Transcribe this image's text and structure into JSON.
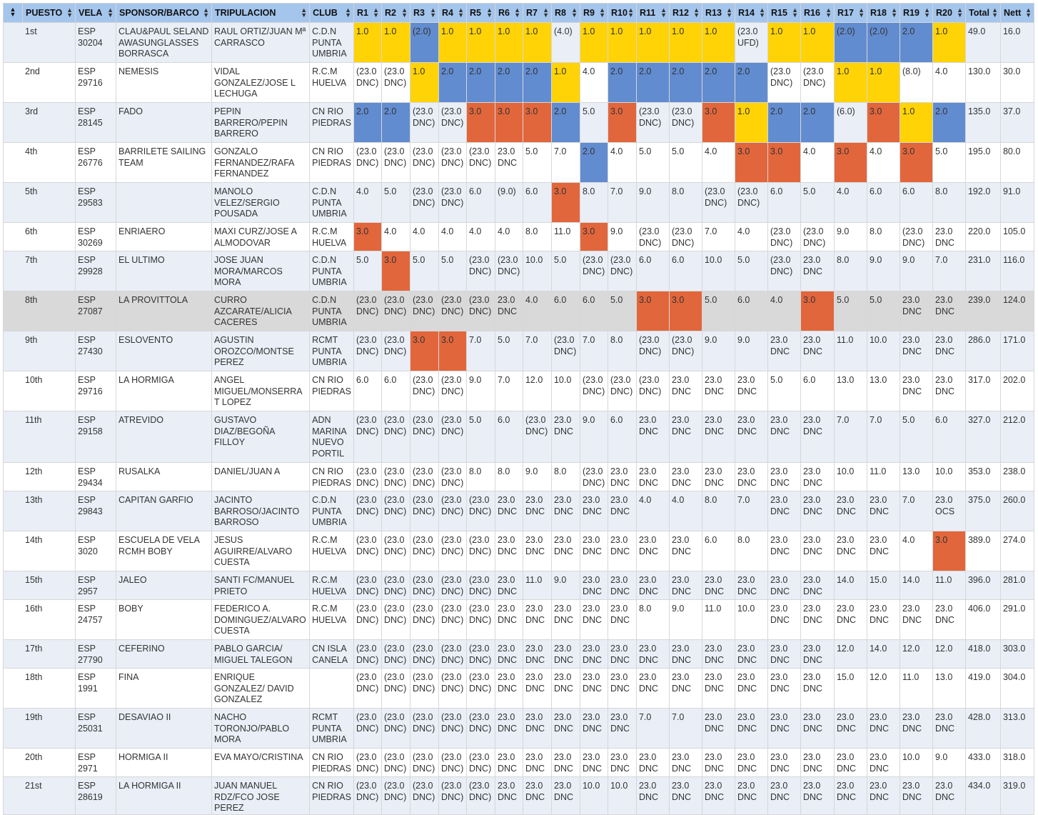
{
  "colors": {
    "y": "#ffd305",
    "b": "#628cd0",
    "o": "#e2663c",
    "header": "#a4c5ec",
    "stripe": "#e9eef7",
    "highlight": "#d9d9d9"
  },
  "headers": [
    "PUESTO",
    "VELA",
    "SPONSOR/BARCO",
    "TRIPULACION",
    "CLUB",
    "R1",
    "R2",
    "R3",
    "R4",
    "R5",
    "R6",
    "R7",
    "R8",
    "R9",
    "R10",
    "R11",
    "R12",
    "R13",
    "R14",
    "R15",
    "R16",
    "R17",
    "R18",
    "R19",
    "R20",
    "Total",
    "Nett"
  ],
  "rows": [
    {
      "pos": "1st",
      "vela": "ESP 30204",
      "barco": "CLAU&PAUL SELAND AWASUNGLASSES BORRASCA",
      "trip": "RAUL ORTIZ/JUAN Mª CARRASCO",
      "club": "C.D.N PUNTA UMBRIA",
      "r": [
        "1.0",
        "1.0",
        "(2.0)",
        "1.0",
        "1.0",
        "1.0",
        "1.0",
        "(4.0)",
        "1.0",
        "1.0",
        "1.0",
        "1.0",
        "1.0",
        "(23.0 UFD)",
        "1.0",
        "1.0",
        "(2.0)",
        "(2.0)",
        "2.0",
        "1.0"
      ],
      "c": [
        "y",
        "y",
        "b",
        "y",
        "y",
        "y",
        "y",
        "",
        "y",
        "y",
        "y",
        "y",
        "y",
        "",
        "y",
        "y",
        "b",
        "b",
        "b",
        "y"
      ],
      "total": "49.0",
      "nett": "16.0"
    },
    {
      "pos": "2nd",
      "vela": "ESP 29716",
      "barco": "NEMESIS",
      "trip": "VIDAL GONZALEZ/JOSE L LECHUGA",
      "club": "R.C.M HUELVA",
      "r": [
        "(23.0 DNC)",
        "(23.0 DNC)",
        "1.0",
        "2.0",
        "2.0",
        "2.0",
        "2.0",
        "1.0",
        "4.0",
        "2.0",
        "2.0",
        "2.0",
        "2.0",
        "2.0",
        "(23.0 DNC)",
        "(23.0 DNC)",
        "1.0",
        "1.0",
        "(8.0)",
        "4.0"
      ],
      "c": [
        "",
        "",
        "y",
        "b",
        "b",
        "b",
        "b",
        "y",
        "",
        "b",
        "b",
        "b",
        "b",
        "b",
        "",
        "",
        "y",
        "y",
        "",
        ""
      ],
      "total": "130.0",
      "nett": "30.0"
    },
    {
      "pos": "3rd",
      "vela": "ESP 28145",
      "barco": "FADO",
      "trip": "PEPIN BARRERO/PEPIN BARRERO",
      "club": "CN RIO PIEDRAS",
      "r": [
        "2.0",
        "2.0",
        "(23.0 DNC)",
        "(23.0 DNC)",
        "3.0",
        "3.0",
        "3.0",
        "2.0",
        "5.0",
        "3.0",
        "(23.0 DNC)",
        "(23.0 DNC)",
        "3.0",
        "1.0",
        "2.0",
        "2.0",
        "(6.0)",
        "3.0",
        "1.0",
        "2.0"
      ],
      "c": [
        "b",
        "b",
        "",
        "",
        "o",
        "o",
        "o",
        "b",
        "",
        "o",
        "",
        "",
        "o",
        "y",
        "b",
        "b",
        "",
        "o",
        "y",
        "b"
      ],
      "total": "135.0",
      "nett": "37.0"
    },
    {
      "pos": "4th",
      "vela": "ESP 26776",
      "barco": "BARRILETE SAILING TEAM",
      "trip": "GONZALO FERNANDEZ/RAFA FERNANDEZ",
      "club": "CN RIO PIEDRAS",
      "r": [
        "(23.0 DNC)",
        "(23.0 DNC)",
        "(23.0 DNC)",
        "(23.0 DNC)",
        "(23.0 DNC)",
        "23.0 DNC",
        "5.0",
        "7.0",
        "2.0",
        "4.0",
        "5.0",
        "5.0",
        "4.0",
        "3.0",
        "3.0",
        "4.0",
        "3.0",
        "4.0",
        "3.0",
        "5.0"
      ],
      "c": [
        "",
        "",
        "",
        "",
        "",
        "",
        "",
        "",
        "b",
        "",
        "",
        "",
        "",
        "o",
        "o",
        "",
        "o",
        "",
        "o",
        ""
      ],
      "total": "195.0",
      "nett": "80.0"
    },
    {
      "pos": "5th",
      "vela": "ESP 29583",
      "barco": "",
      "trip": "MANOLO VELEZ/SERGIO POUSADA",
      "club": "C.D.N PUNTA UMBRIA",
      "r": [
        "4.0",
        "5.0",
        "(23.0 DNC)",
        "(23.0 DNC)",
        "6.0",
        "(9.0)",
        "6.0",
        "3.0",
        "8.0",
        "7.0",
        "9.0",
        "8.0",
        "(23.0 DNC)",
        "(23.0 DNC)",
        "6.0",
        "5.0",
        "4.0",
        "6.0",
        "6.0",
        "8.0"
      ],
      "c": [
        "",
        "",
        "",
        "",
        "",
        "",
        "",
        "o",
        "",
        "",
        "",
        "",
        "",
        "",
        "",
        "",
        "",
        "",
        "",
        ""
      ],
      "total": "192.0",
      "nett": "91.0"
    },
    {
      "pos": "6th",
      "vela": "ESP 30269",
      "barco": "ENRIAERO",
      "trip": "MAXI CURZ/JOSE A ALMODOVAR",
      "club": "R.C.M HUELVA",
      "r": [
        "3.0",
        "4.0",
        "4.0",
        "4.0",
        "4.0",
        "4.0",
        "8.0",
        "11.0",
        "3.0",
        "9.0",
        "(23.0 DNC)",
        "(23.0 DNC)",
        "7.0",
        "4.0",
        "(23.0 DNC)",
        "(23.0 DNC)",
        "9.0",
        "8.0",
        "(23.0 DNC)",
        "23.0 DNC"
      ],
      "c": [
        "o",
        "",
        "",
        "",
        "",
        "",
        "",
        "",
        "o",
        "",
        "",
        "",
        "",
        "",
        "",
        "",
        "",
        "",
        "",
        ""
      ],
      "total": "220.0",
      "nett": "105.0"
    },
    {
      "pos": "7th",
      "vela": "ESP 29928",
      "barco": "EL ULTIMO",
      "trip": "JOSE JUAN MORA/MARCOS MORA",
      "club": "C.D.N PUNTA UMBRIA",
      "r": [
        "5.0",
        "3.0",
        "5.0",
        "5.0",
        "(23.0 DNC)",
        "(23.0 DNC)",
        "10.0",
        "5.0",
        "(23.0 DNC)",
        "(23.0 DNC)",
        "6.0",
        "6.0",
        "10.0",
        "5.0",
        "(23.0 DNC)",
        "23.0 DNC",
        "8.0",
        "9.0",
        "9.0",
        "7.0"
      ],
      "c": [
        "",
        "o",
        "",
        "",
        "",
        "",
        "",
        "",
        "",
        "",
        "",
        "",
        "",
        "",
        "",
        "",
        "",
        "",
        "",
        ""
      ],
      "total": "231.0",
      "nett": "116.0"
    },
    {
      "pos": "8th",
      "vela": "ESP 27087",
      "barco": "LA PROVITTOLA",
      "trip": "CURRO AZCARATE/ALICIA CACERES",
      "club": "C.D.N PUNTA UMBRIA",
      "r": [
        "(23.0 DNC)",
        "(23.0 DNC)",
        "(23.0 DNC)",
        "(23.0 DNC)",
        "(23.0 DNC)",
        "23.0 DNC",
        "4.0",
        "6.0",
        "6.0",
        "5.0",
        "3.0",
        "3.0",
        "5.0",
        "6.0",
        "4.0",
        "3.0",
        "5.0",
        "5.0",
        "23.0 DNC",
        "23.0 DNC"
      ],
      "c": [
        "",
        "",
        "",
        "",
        "",
        "",
        "",
        "",
        "",
        "",
        "o",
        "o",
        "",
        "",
        "",
        "o",
        "",
        "",
        "",
        ""
      ],
      "total": "239.0",
      "nett": "124.0"
    },
    {
      "pos": "9th",
      "vela": "ESP 27430",
      "barco": "ESLOVENTO",
      "trip": "AGUSTIN OROZCO/MONTSE PEREZ",
      "club": "RCMT PUNTA UMBRIA",
      "r": [
        "(23.0 DNC)",
        "(23.0 DNC)",
        "3.0",
        "3.0",
        "7.0",
        "5.0",
        "7.0",
        "(23.0 DNC)",
        "7.0",
        "8.0",
        "(23.0 DNC)",
        "(23.0 DNC)",
        "9.0",
        "9.0",
        "23.0 DNC",
        "23.0 DNC",
        "11.0",
        "10.0",
        "23.0 DNC",
        "23.0 DNC"
      ],
      "c": [
        "",
        "",
        "o",
        "o",
        "",
        "",
        "",
        "",
        "",
        "",
        "",
        "",
        "",
        "",
        "",
        "",
        "",
        "",
        "",
        ""
      ],
      "total": "286.0",
      "nett": "171.0"
    },
    {
      "pos": "10th",
      "vela": "ESP 29716",
      "barco": "LA HORMIGA",
      "trip": "ANGEL MIGUEL/MONSERRAT LOPEZ",
      "club": "CN RIO PIEDRAS",
      "r": [
        "6.0",
        "6.0",
        "(23.0 DNC)",
        "(23.0 DNC)",
        "9.0",
        "7.0",
        "12.0",
        "10.0",
        "(23.0 DNC)",
        "(23.0 DNC)",
        "(23.0 DNC)",
        "23.0 DNC",
        "23.0 DNC",
        "23.0 DNC",
        "5.0",
        "6.0",
        "13.0",
        "13.0",
        "23.0 DNC",
        "23.0 DNC"
      ],
      "c": [
        "",
        "",
        "",
        "",
        "",
        "",
        "",
        "",
        "",
        "",
        "",
        "",
        "",
        "",
        "",
        "",
        "",
        "",
        "",
        ""
      ],
      "total": "317.0",
      "nett": "202.0"
    },
    {
      "pos": "11th",
      "vela": "ESP 29158",
      "barco": "ATREVIDO",
      "trip": "GUSTAVO DIAZ/BEGOÑA FILLOY",
      "club": "ADN MARINA NUEVO PORTIL",
      "r": [
        "(23.0 DNC)",
        "(23.0 DNC)",
        "(23.0 DNC)",
        "(23.0 DNC)",
        "5.0",
        "6.0",
        "(23.0 DNC)",
        "23.0 DNC",
        "9.0",
        "6.0",
        "23.0 DNC",
        "23.0 DNC",
        "23.0 DNC",
        "23.0 DNC",
        "23.0 DNC",
        "23.0 DNC",
        "7.0",
        "7.0",
        "5.0",
        "6.0"
      ],
      "c": [
        "",
        "",
        "",
        "",
        "",
        "",
        "",
        "",
        "",
        "",
        "",
        "",
        "",
        "",
        "",
        "",
        "",
        "",
        "",
        ""
      ],
      "total": "327.0",
      "nett": "212.0"
    },
    {
      "pos": "12th",
      "vela": "ESP 29434",
      "barco": "RUSALKA",
      "trip": "DANIEL/JUAN A",
      "club": "CN RIO PIEDRAS",
      "r": [
        "(23.0 DNC)",
        "(23.0 DNC)",
        "(23.0 DNC)",
        "(23.0 DNC)",
        "8.0",
        "8.0",
        "9.0",
        "8.0",
        "(23.0 DNC)",
        "23.0 DNC",
        "23.0 DNC",
        "23.0 DNC",
        "23.0 DNC",
        "23.0 DNC",
        "23.0 DNC",
        "23.0 DNC",
        "10.0",
        "11.0",
        "13.0",
        "10.0"
      ],
      "c": [
        "",
        "",
        "",
        "",
        "",
        "",
        "",
        "",
        "",
        "",
        "",
        "",
        "",
        "",
        "",
        "",
        "",
        "",
        "",
        ""
      ],
      "total": "353.0",
      "nett": "238.0"
    },
    {
      "pos": "13th",
      "vela": "ESP 29843",
      "barco": "CAPITAN GARFIO",
      "trip": "JACINTO BARROSO/JACINTO BARROSO",
      "club": "C.D.N PUNTA UMBRIA",
      "r": [
        "(23.0 DNC)",
        "(23.0 DNC)",
        "(23.0 DNC)",
        "(23.0 DNC)",
        "(23.0 DNC)",
        "23.0 DNC",
        "23.0 DNC",
        "23.0 DNC",
        "23.0 DNC",
        "23.0 DNC",
        "4.0",
        "4.0",
        "8.0",
        "7.0",
        "23.0 DNC",
        "23.0 DNC",
        "23.0 DNC",
        "23.0 DNC",
        "7.0",
        "23.0 OCS"
      ],
      "c": [
        "",
        "",
        "",
        "",
        "",
        "",
        "",
        "",
        "",
        "",
        "",
        "",
        "",
        "",
        "",
        "",
        "",
        "",
        "",
        ""
      ],
      "total": "375.0",
      "nett": "260.0"
    },
    {
      "pos": "14th",
      "vela": "ESP 3020",
      "barco": "ESCUELA DE VELA RCMH BOBY",
      "trip": "JESUS AGUIRRE/ALVARO CUESTA",
      "club": "R.C.M HUELVA",
      "r": [
        "(23.0 DNC)",
        "(23.0 DNC)",
        "(23.0 DNC)",
        "(23.0 DNC)",
        "(23.0 DNC)",
        "23.0 DNC",
        "23.0 DNC",
        "23.0 DNC",
        "23.0 DNC",
        "23.0 DNC",
        "23.0 DNC",
        "23.0 DNC",
        "6.0",
        "8.0",
        "23.0 DNC",
        "23.0 DNC",
        "23.0 DNC",
        "23.0 DNC",
        "4.0",
        "3.0"
      ],
      "c": [
        "",
        "",
        "",
        "",
        "",
        "",
        "",
        "",
        "",
        "",
        "",
        "",
        "",
        "",
        "",
        "",
        "",
        "",
        "",
        "o"
      ],
      "total": "389.0",
      "nett": "274.0"
    },
    {
      "pos": "15th",
      "vela": "ESP 2957",
      "barco": "JALEO",
      "trip": "SANTI FC/MANUEL PRIETO",
      "club": "R.C.M HUELVA",
      "r": [
        "(23.0 DNC)",
        "(23.0 DNC)",
        "(23.0 DNC)",
        "(23.0 DNC)",
        "(23.0 DNC)",
        "23.0 DNC",
        "11.0",
        "9.0",
        "23.0 DNC",
        "23.0 DNC",
        "23.0 DNC",
        "23.0 DNC",
        "23.0 DNC",
        "23.0 DNC",
        "23.0 DNC",
        "23.0 DNC",
        "14.0",
        "15.0",
        "14.0",
        "11.0"
      ],
      "c": [
        "",
        "",
        "",
        "",
        "",
        "",
        "",
        "",
        "",
        "",
        "",
        "",
        "",
        "",
        "",
        "",
        "",
        "",
        "",
        ""
      ],
      "total": "396.0",
      "nett": "281.0"
    },
    {
      "pos": "16th",
      "vela": "ESP 24757",
      "barco": "BOBY",
      "trip": "FEDERICO A. DOMINGUEZ/ALVARO CUESTA",
      "club": "R.C.M HUELVA",
      "r": [
        "(23.0 DNC)",
        "(23.0 DNC)",
        "(23.0 DNC)",
        "(23.0 DNC)",
        "(23.0 DNC)",
        "23.0 DNC",
        "23.0 DNC",
        "23.0 DNC",
        "23.0 DNC",
        "23.0 DNC",
        "8.0",
        "9.0",
        "11.0",
        "10.0",
        "23.0 DNC",
        "23.0 DNC",
        "23.0 DNC",
        "23.0 DNC",
        "23.0 DNC",
        "23.0 DNC"
      ],
      "c": [
        "",
        "",
        "",
        "",
        "",
        "",
        "",
        "",
        "",
        "",
        "",
        "",
        "",
        "",
        "",
        "",
        "",
        "",
        "",
        ""
      ],
      "total": "406.0",
      "nett": "291.0"
    },
    {
      "pos": "17th",
      "vela": "ESP 27790",
      "barco": "CEFERINO",
      "trip": "PABLO GARCIA/ MIGUEL TALEGON",
      "club": "CN ISLA CANELA",
      "r": [
        "(23.0 DNC)",
        "(23.0 DNC)",
        "(23.0 DNC)",
        "(23.0 DNC)",
        "(23.0 DNC)",
        "23.0 DNC",
        "23.0 DNC",
        "23.0 DNC",
        "23.0 DNC",
        "23.0 DNC",
        "23.0 DNC",
        "23.0 DNC",
        "23.0 DNC",
        "23.0 DNC",
        "23.0 DNC",
        "23.0 DNC",
        "12.0",
        "14.0",
        "12.0",
        "12.0"
      ],
      "c": [
        "",
        "",
        "",
        "",
        "",
        "",
        "",
        "",
        "",
        "",
        "",
        "",
        "",
        "",
        "",
        "",
        "",
        "",
        "",
        ""
      ],
      "total": "418.0",
      "nett": "303.0"
    },
    {
      "pos": "18th",
      "vela": "ESP 1991",
      "barco": "FINA",
      "trip": "ENRIQUE GONZALEZ/ DAVID GONZALEZ",
      "club": "",
      "r": [
        "(23.0 DNC)",
        "(23.0 DNC)",
        "(23.0 DNC)",
        "(23.0 DNC)",
        "(23.0 DNC)",
        "23.0 DNC",
        "23.0 DNC",
        "23.0 DNC",
        "23.0 DNC",
        "23.0 DNC",
        "23.0 DNC",
        "23.0 DNC",
        "23.0 DNC",
        "23.0 DNC",
        "23.0 DNC",
        "23.0 DNC",
        "15.0",
        "12.0",
        "11.0",
        "13.0"
      ],
      "c": [
        "",
        "",
        "",
        "",
        "",
        "",
        "",
        "",
        "",
        "",
        "",
        "",
        "",
        "",
        "",
        "",
        "",
        "",
        "",
        ""
      ],
      "total": "419.0",
      "nett": "304.0"
    },
    {
      "pos": "19th",
      "vela": "ESP 25031",
      "barco": "DESAVIAO II",
      "trip": "NACHO TORONJO/PABLO MORA",
      "club": "RCMT PUNTA UMBRIA",
      "r": [
        "(23.0 DNC)",
        "(23.0 DNC)",
        "(23.0 DNC)",
        "(23.0 DNC)",
        "(23.0 DNC)",
        "23.0 DNC",
        "23.0 DNC",
        "23.0 DNC",
        "23.0 DNC",
        "23.0 DNC",
        "7.0",
        "7.0",
        "23.0 DNC",
        "23.0 DNC",
        "23.0 DNC",
        "23.0 DNC",
        "23.0 DNC",
        "23.0 DNC",
        "23.0 DNC",
        "23.0 DNC"
      ],
      "c": [
        "",
        "",
        "",
        "",
        "",
        "",
        "",
        "",
        "",
        "",
        "",
        "",
        "",
        "",
        "",
        "",
        "",
        "",
        "",
        ""
      ],
      "total": "428.0",
      "nett": "313.0"
    },
    {
      "pos": "20th",
      "vela": "ESP 2971",
      "barco": "HORMIGA II",
      "trip": "EVA MAYO/CRISTINA",
      "club": "CN RIO PIEDRAS",
      "r": [
        "(23.0 DNC)",
        "(23.0 DNC)",
        "(23.0 DNC)",
        "(23.0 DNC)",
        "(23.0 DNC)",
        "23.0 DNC",
        "23.0 DNC",
        "23.0 DNC",
        "23.0 DNC",
        "23.0 DNC",
        "23.0 DNC",
        "23.0 DNC",
        "23.0 DNC",
        "23.0 DNC",
        "23.0 DNC",
        "23.0 DNC",
        "23.0 DNC",
        "23.0 DNC",
        "10.0",
        "9.0"
      ],
      "c": [
        "",
        "",
        "",
        "",
        "",
        "",
        "",
        "",
        "",
        "",
        "",
        "",
        "",
        "",
        "",
        "",
        "",
        "",
        "",
        ""
      ],
      "total": "433.0",
      "nett": "318.0"
    },
    {
      "pos": "21st",
      "vela": "ESP 28619",
      "barco": "LA HORMIGA II",
      "trip": "JUAN MANUEL RDZ/FCO JOSE PEREZ",
      "club": "CN RIO PIEDRAS",
      "r": [
        "(23.0 DNC)",
        "(23.0 DNC)",
        "(23.0 DNC)",
        "(23.0 DNC)",
        "(23.0 DNC)",
        "23.0 DNC",
        "23.0 DNC",
        "23.0 DNC",
        "10.0",
        "10.0",
        "23.0 DNC",
        "23.0 DNC",
        "23.0 DNC",
        "23.0 DNC",
        "23.0 DNC",
        "23.0 DNC",
        "23.0 DNC",
        "23.0 DNC",
        "23.0 DNC",
        "23.0 DNC"
      ],
      "c": [
        "",
        "",
        "",
        "",
        "",
        "",
        "",
        "",
        "",
        "",
        "",
        "",
        "",
        "",
        "",
        "",
        "",
        "",
        "",
        ""
      ],
      "total": "434.0",
      "nett": "319.0"
    }
  ]
}
